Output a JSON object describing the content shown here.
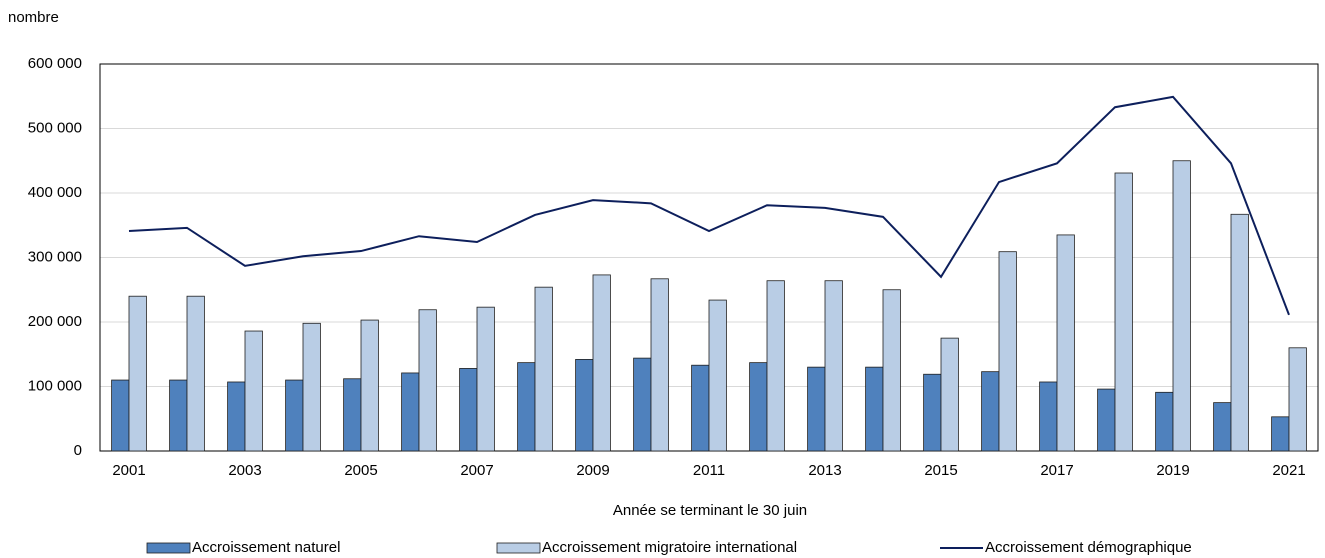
{
  "chart_data": {
    "type": "bar",
    "y_axis_label": "nombre",
    "x_axis_label": "Année se terminant le 30 juin",
    "categories": [
      "2001",
      null,
      "2003",
      null,
      "2005",
      null,
      "2007",
      null,
      "2009",
      null,
      "2011",
      null,
      "2013",
      null,
      "2015",
      null,
      "2017",
      null,
      "2019",
      null,
      "2021"
    ],
    "series": [
      {
        "name": "Accroissement naturel",
        "type": "bar",
        "color": "#4f81bd",
        "values": [
          110000,
          110000,
          107000,
          110000,
          112000,
          121000,
          128000,
          137000,
          142000,
          144000,
          133000,
          137000,
          130000,
          130000,
          119000,
          123000,
          107000,
          96000,
          91000,
          75000,
          53000
        ]
      },
      {
        "name": "Accroissement migratoire international",
        "type": "bar",
        "color": "#b9cde5",
        "values": [
          240000,
          240000,
          186000,
          198000,
          203000,
          219000,
          223000,
          254000,
          273000,
          267000,
          234000,
          264000,
          264000,
          250000,
          175000,
          309000,
          335000,
          431000,
          450000,
          367000,
          160000
        ]
      },
      {
        "name": "Accroissement démographique",
        "type": "line",
        "color": "#0d1f5c",
        "values": [
          341000,
          346000,
          287000,
          302000,
          310000,
          333000,
          324000,
          366000,
          389000,
          384000,
          341000,
          381000,
          377000,
          363000,
          270000,
          417000,
          446000,
          533000,
          549000,
          446000,
          211000
        ]
      }
    ],
    "ylim": [
      0,
      600000
    ],
    "yticks": [
      0,
      {
        "value": 100000,
        "label": "100 000"
      },
      {
        "value": 200000,
        "label": "200 000"
      },
      {
        "value": 300000,
        "label": "300 000"
      },
      {
        "value": 400000,
        "label": "400 000"
      },
      {
        "value": 500000,
        "label": "500 000"
      },
      {
        "value": 600000,
        "label": "600 000"
      }
    ],
    "grid": true,
    "legend": "bottom"
  }
}
